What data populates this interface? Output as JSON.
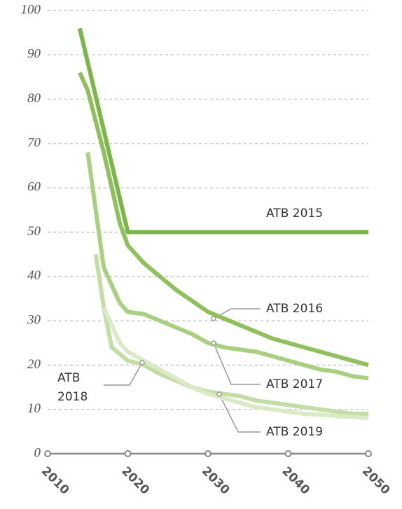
{
  "chart_data": {
    "type": "line",
    "xlim": [
      2010,
      2050
    ],
    "xticks": [
      2010,
      2020,
      2030,
      2040,
      2050
    ],
    "ylim": [
      0,
      100
    ],
    "yticks": [
      0,
      10,
      20,
      30,
      40,
      50,
      60,
      70,
      80,
      90,
      100
    ],
    "grid": true,
    "series": [
      {
        "name": "ATB 2015",
        "color": "#7ab648",
        "x": [
          2014,
          2020,
          2050
        ],
        "values": [
          96,
          50,
          50
        ]
      },
      {
        "name": "ATB 2016",
        "color": "#8fc05c",
        "x": [
          2014,
          2015,
          2016,
          2017,
          2018,
          2019,
          2020,
          2022,
          2024,
          2026,
          2028,
          2030,
          2032,
          2034,
          2036,
          2038,
          2040,
          2042,
          2044,
          2046,
          2048,
          2050
        ],
        "values": [
          86,
          82,
          75,
          68,
          60,
          52,
          47,
          43,
          40,
          37,
          34.5,
          32,
          30.5,
          29,
          27.5,
          26,
          25,
          24,
          23,
          22,
          21,
          20
        ]
      },
      {
        "name": "ATB 2017",
        "color": "#a9d080",
        "x": [
          2015,
          2016,
          2017,
          2018,
          2019,
          2020,
          2022,
          2024,
          2026,
          2028,
          2030,
          2032,
          2034,
          2036,
          2038,
          2040,
          2042,
          2044,
          2046,
          2048,
          2050
        ],
        "values": [
          68,
          55,
          42,
          38,
          34,
          32,
          31.5,
          30,
          28.5,
          27,
          25,
          24,
          23.5,
          23,
          22,
          21,
          20,
          19,
          18.5,
          17.5,
          17
        ]
      },
      {
        "name": "ATB 2018",
        "color": "#c3dea5",
        "x": [
          2016,
          2017,
          2018,
          2020,
          2022,
          2024,
          2026,
          2028,
          2030,
          2032,
          2034,
          2036,
          2038,
          2040,
          2042,
          2044,
          2046,
          2048,
          2050
        ],
        "values": [
          45,
          33,
          24,
          21,
          20,
          18,
          16.5,
          15,
          14,
          13.5,
          13,
          12,
          11.5,
          11,
          10.5,
          10,
          9.5,
          9,
          9
        ]
      },
      {
        "name": "ATB 2019",
        "color": "#dbeac6",
        "x": [
          2017,
          2018,
          2019,
          2020,
          2022,
          2024,
          2026,
          2028,
          2030,
          2032,
          2034,
          2036,
          2038,
          2040,
          2042,
          2044,
          2046,
          2048,
          2050
        ],
        "values": [
          33,
          29,
          25,
          23,
          21,
          19,
          17,
          15,
          13.5,
          12.5,
          11.5,
          10.5,
          10,
          9.5,
          9,
          8.8,
          8.5,
          8.3,
          8
        ]
      }
    ]
  }
}
